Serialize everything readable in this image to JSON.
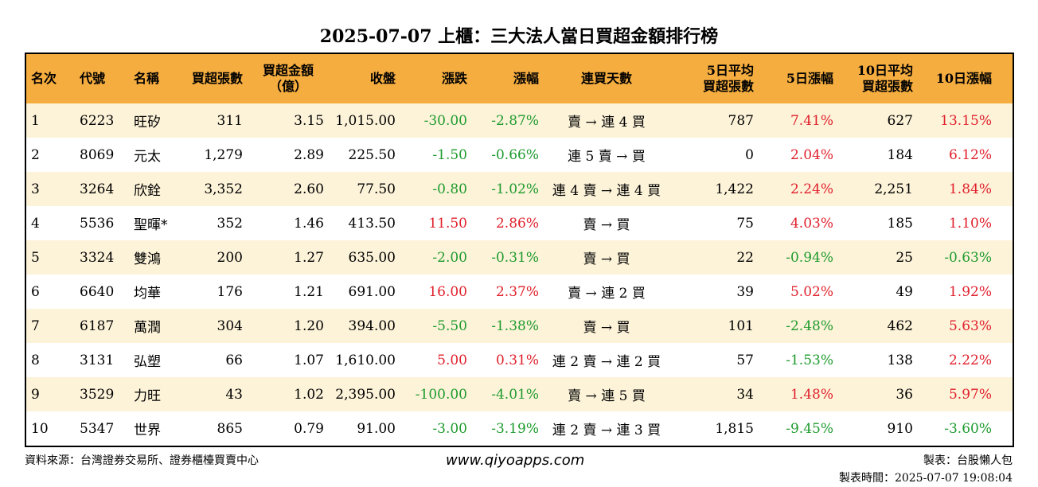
{
  "title": "2025-07-07 上櫃：三大法人當日買超金額排行榜",
  "headers": {
    "rank": "名次",
    "code": "代號",
    "name": "名稱",
    "net_lots": "買超張數",
    "net_amount_l1": "買超金額",
    "net_amount_l2": "（億）",
    "close": "收盤",
    "change": "漲跌",
    "change_pct": "漲幅",
    "buy_days": "連買天數",
    "avg5_l1": "5日平均",
    "avg5_l2": "買超張數",
    "pct5": "5日漲幅",
    "avg10_l1": "10日平均",
    "avg10_l2": "買超張數",
    "pct10": "10日漲幅"
  },
  "rows": [
    {
      "rank": "1",
      "code": "6223",
      "name": "旺矽",
      "net_lots": "311",
      "net_amount": "3.15",
      "close": "1,015.00",
      "change": "-30.00",
      "change_pct": "-2.87%",
      "buy_days": "賣 → 連 4 買",
      "avg5": "787",
      "pct5": "7.41%",
      "avg10": "627",
      "pct10": "13.15%"
    },
    {
      "rank": "2",
      "code": "8069",
      "name": "元太",
      "net_lots": "1,279",
      "net_amount": "2.89",
      "close": "225.50",
      "change": "-1.50",
      "change_pct": "-0.66%",
      "buy_days": "連 5 賣 → 買",
      "avg5": "0",
      "pct5": "2.04%",
      "avg10": "184",
      "pct10": "6.12%"
    },
    {
      "rank": "3",
      "code": "3264",
      "name": "欣銓",
      "net_lots": "3,352",
      "net_amount": "2.60",
      "close": "77.50",
      "change": "-0.80",
      "change_pct": "-1.02%",
      "buy_days": "連 4 賣 → 連 4 買",
      "avg5": "1,422",
      "pct5": "2.24%",
      "avg10": "2,251",
      "pct10": "1.84%"
    },
    {
      "rank": "4",
      "code": "5536",
      "name": "聖暉*",
      "net_lots": "352",
      "net_amount": "1.46",
      "close": "413.50",
      "change": "11.50",
      "change_pct": "2.86%",
      "buy_days": "賣 → 買",
      "avg5": "75",
      "pct5": "4.03%",
      "avg10": "185",
      "pct10": "1.10%"
    },
    {
      "rank": "5",
      "code": "3324",
      "name": "雙鴻",
      "net_lots": "200",
      "net_amount": "1.27",
      "close": "635.00",
      "change": "-2.00",
      "change_pct": "-0.31%",
      "buy_days": "賣 → 買",
      "avg5": "22",
      "pct5": "-0.94%",
      "avg10": "25",
      "pct10": "-0.63%"
    },
    {
      "rank": "6",
      "code": "6640",
      "name": "均華",
      "net_lots": "176",
      "net_amount": "1.21",
      "close": "691.00",
      "change": "16.00",
      "change_pct": "2.37%",
      "buy_days": "賣 → 連 2 買",
      "avg5": "39",
      "pct5": "5.02%",
      "avg10": "49",
      "pct10": "1.92%"
    },
    {
      "rank": "7",
      "code": "6187",
      "name": "萬潤",
      "net_lots": "304",
      "net_amount": "1.20",
      "close": "394.00",
      "change": "-5.50",
      "change_pct": "-1.38%",
      "buy_days": "賣 → 買",
      "avg5": "101",
      "pct5": "-2.48%",
      "avg10": "462",
      "pct10": "5.63%"
    },
    {
      "rank": "8",
      "code": "3131",
      "name": "弘塑",
      "net_lots": "66",
      "net_amount": "1.07",
      "close": "1,610.00",
      "change": "5.00",
      "change_pct": "0.31%",
      "buy_days": "連 2 賣 → 連 2 買",
      "avg5": "57",
      "pct5": "-1.53%",
      "avg10": "138",
      "pct10": "2.22%"
    },
    {
      "rank": "9",
      "code": "3529",
      "name": "力旺",
      "net_lots": "43",
      "net_amount": "1.02",
      "close": "2,395.00",
      "change": "-100.00",
      "change_pct": "-4.01%",
      "buy_days": "賣 → 連 5 買",
      "avg5": "34",
      "pct5": "1.48%",
      "avg10": "36",
      "pct10": "5.97%"
    },
    {
      "rank": "10",
      "code": "5347",
      "name": "世界",
      "net_lots": "865",
      "net_amount": "0.79",
      "close": "91.00",
      "change": "-3.00",
      "change_pct": "-3.19%",
      "buy_days": "連 2 賣 → 連 3 買",
      "avg5": "1,815",
      "pct5": "-9.45%",
      "avg10": "910",
      "pct10": "-3.60%"
    }
  ],
  "footer": {
    "source": "資料來源：台灣證券交易所、證券櫃檯買賣中心",
    "website": "www.qiyoapps.com",
    "author": "製表：台股懶人包",
    "made_time": "製表時間：2025-07-07 19:08:04"
  },
  "colors": {
    "header_bg": "#f5ad3f",
    "odd_row_bg": "#fdf3d9",
    "negative": "#1e9b2e",
    "positive": "#e0202c"
  }
}
